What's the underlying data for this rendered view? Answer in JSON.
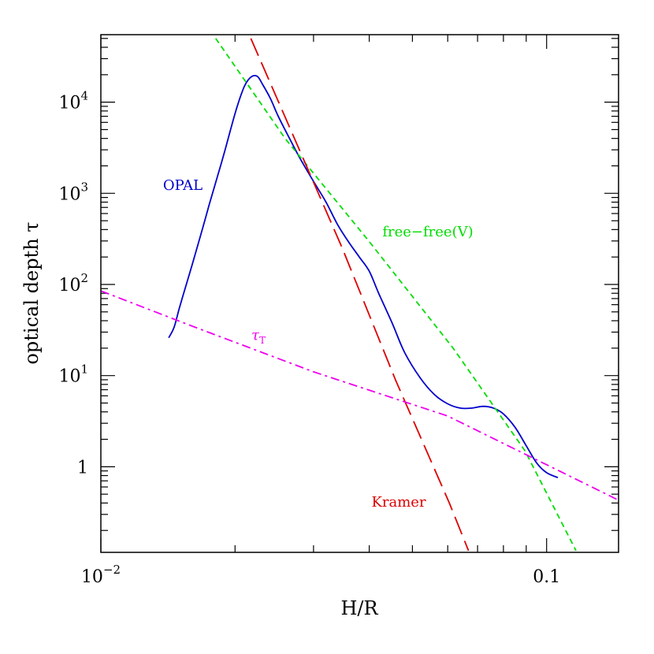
{
  "chart_data": {
    "type": "line",
    "title": "",
    "xlabel": "H/R",
    "ylabel": "optical depth τ",
    "xscale": "log",
    "yscale": "log",
    "xlim": [
      0.01,
      0.145
    ],
    "ylim": [
      0.115,
      55000
    ],
    "grid": false,
    "legend": "none",
    "xticks": {
      "labeled": [
        {
          "value": 0.01,
          "base": "10",
          "exp": "−2"
        },
        {
          "value": 0.1,
          "base": "0.1",
          "exp": ""
        }
      ]
    },
    "yticks": {
      "labeled": [
        {
          "value": 1,
          "base": "1",
          "exp": ""
        },
        {
          "value": 10,
          "base": "10",
          "exp": "1"
        },
        {
          "value": 100,
          "base": "10",
          "exp": "2"
        },
        {
          "value": 1000,
          "base": "10",
          "exp": "3"
        },
        {
          "value": 10000,
          "base": "10",
          "exp": "4"
        }
      ]
    },
    "series": [
      {
        "name": "OPAL",
        "color": "#0000cc",
        "dash": "solid",
        "x": [
          0.0142,
          0.0146,
          0.015,
          0.0155,
          0.016,
          0.0165,
          0.017,
          0.0175,
          0.018,
          0.0185,
          0.019,
          0.0195,
          0.02,
          0.0205,
          0.021,
          0.0215,
          0.022,
          0.0225,
          0.023,
          0.024,
          0.025,
          0.0265,
          0.028,
          0.03,
          0.032,
          0.034,
          0.036,
          0.038,
          0.04,
          0.042,
          0.045,
          0.048,
          0.052,
          0.056,
          0.06,
          0.064,
          0.068,
          0.072,
          0.076,
          0.08,
          0.085,
          0.09,
          0.095,
          0.1,
          0.106
        ],
        "y": [
          26,
          34,
          55,
          95,
          160,
          270,
          450,
          750,
          1200,
          1900,
          3000,
          4800,
          7500,
          11000,
          15000,
          18000,
          19500,
          19000,
          16000,
          11000,
          7000,
          4000,
          2400,
          1350,
          800,
          450,
          290,
          200,
          140,
          80,
          38,
          18,
          9.5,
          6.2,
          4.9,
          4.4,
          4.4,
          4.6,
          4.4,
          3.8,
          2.7,
          1.7,
          1.1,
          0.86,
          0.76
        ]
      },
      {
        "name": "free-free(V)",
        "color": "#00dd00",
        "dash": "short",
        "x": [
          0.0181,
          0.0259,
          0.0399,
          0.0617,
          0.0894,
          0.1164
        ],
        "y": [
          50000,
          4000,
          300,
          20,
          1.5,
          0.12
        ]
      },
      {
        "name": "Kramer",
        "color": "#dd0000",
        "dash": "long",
        "x": [
          0.0217,
          0.0348,
          0.0458,
          0.0605,
          0.0668
        ],
        "y": [
          50000,
          250,
          9,
          0.4,
          0.12
        ]
      },
      {
        "name": "τ",
        "name_sub": "T",
        "color": "#ee00ee",
        "dash": "dashdot",
        "x": [
          0.01,
          0.016,
          0.03,
          0.06,
          0.145
        ],
        "y": [
          85,
          35,
          11,
          3.6,
          0.43
        ]
      }
    ],
    "annotations": [
      {
        "text": "OPAL",
        "series": 0
      },
      {
        "text": "free−free(V)",
        "series": 1
      },
      {
        "text": "Kramer",
        "series": 2
      },
      {
        "text": "τ",
        "sub": "T",
        "series": 3
      }
    ]
  }
}
